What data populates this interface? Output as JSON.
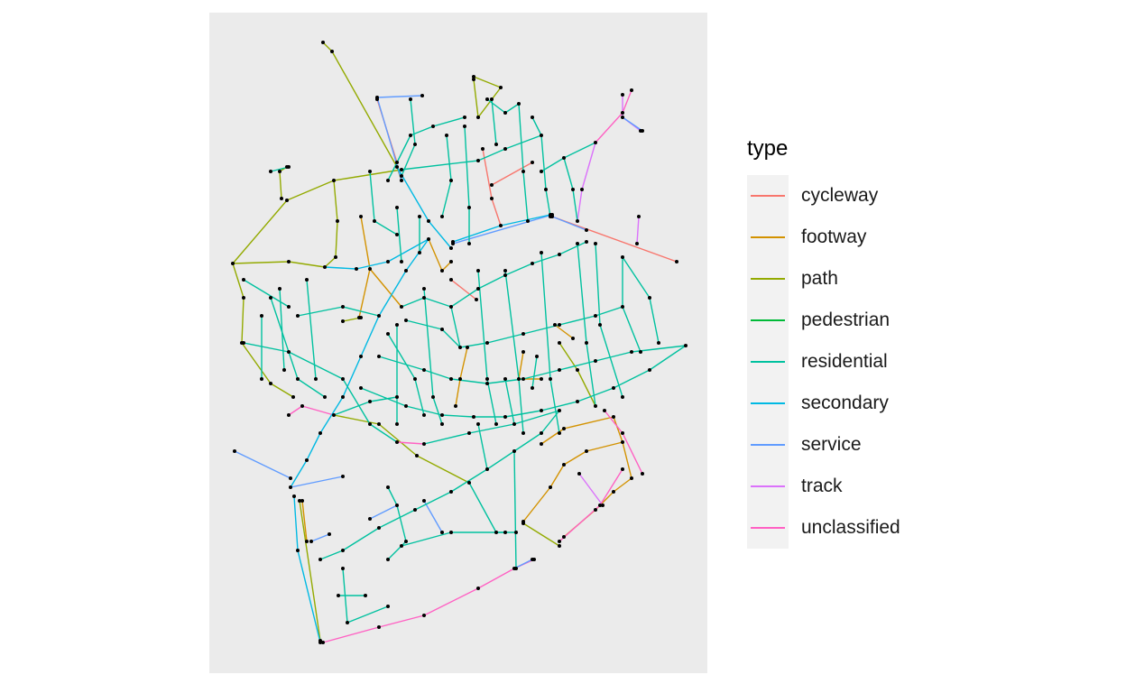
{
  "legend": {
    "title": "type",
    "items": [
      {
        "label": "cycleway",
        "color": "#F8766D"
      },
      {
        "label": "footway",
        "color": "#D39200"
      },
      {
        "label": "path",
        "color": "#93AA00"
      },
      {
        "label": "pedestrian",
        "color": "#00BA38"
      },
      {
        "label": "residential",
        "color": "#00C19F"
      },
      {
        "label": "secondary",
        "color": "#00B9E3"
      },
      {
        "label": "service",
        "color": "#619CFF"
      },
      {
        "label": "track",
        "color": "#DB72FB"
      },
      {
        "label": "unclassified",
        "color": "#FF61C3"
      }
    ]
  },
  "map": {
    "panel_background": "#EBEBEB",
    "node_color": "#000000"
  }
}
